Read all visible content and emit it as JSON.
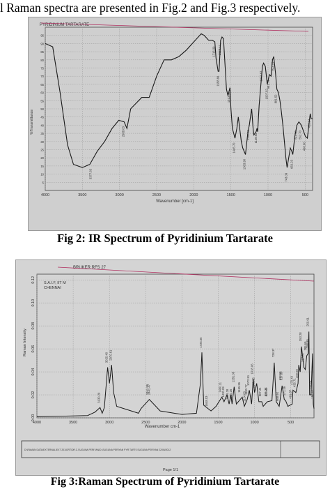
{
  "intro": {
    "text": "l Raman spectra are presented in Fig.2 and Fig.3 respectively."
  },
  "ir_figure": {
    "caption": "Fig 2: IR Spectrum of Pyridinium Tartarate",
    "header_label": "PYRIDINIUM TARTARATE",
    "ylabel": "%Transmittance",
    "xlabel": "Wavenumber [cm-1]",
    "chart_data": {
      "type": "line",
      "title": "",
      "xlabel": "Wavenumber [cm-1]",
      "ylabel": "%Transmittance",
      "x_reversed": true,
      "xlim": [
        4000,
        400
      ],
      "ylim": [
        0,
        100
      ],
      "x_ticks": [
        4000,
        3500,
        3000,
        2500,
        2000,
        1500,
        1000,
        500
      ],
      "y_ticks": [
        95,
        90,
        85,
        80,
        75,
        70,
        65,
        60,
        55,
        50,
        45,
        40,
        35,
        30,
        25,
        20,
        15,
        10,
        5
      ],
      "points": [
        [
          4000,
          90
        ],
        [
          3900,
          88
        ],
        [
          3800,
          60
        ],
        [
          3700,
          28
        ],
        [
          3620,
          16
        ],
        [
          3500,
          14
        ],
        [
          3400,
          16
        ],
        [
          3300,
          24
        ],
        [
          3200,
          30
        ],
        [
          3100,
          38
        ],
        [
          3010,
          43
        ],
        [
          2938,
          42
        ],
        [
          2900,
          38
        ],
        [
          2850,
          50
        ],
        [
          2700,
          57
        ],
        [
          2600,
          57
        ],
        [
          2500,
          70
        ],
        [
          2400,
          80
        ],
        [
          2300,
          80
        ],
        [
          2200,
          82
        ],
        [
          2100,
          86
        ],
        [
          2000,
          91
        ],
        [
          1900,
          96
        ],
        [
          1860,
          95
        ],
        [
          1800,
          92
        ],
        [
          1750,
          92
        ],
        [
          1716,
          91
        ],
        [
          1700,
          81
        ],
        [
          1672,
          73
        ],
        [
          1660,
          73
        ],
        [
          1638,
          92
        ],
        [
          1620,
          94
        ],
        [
          1600,
          93
        ],
        [
          1560,
          62
        ],
        [
          1540,
          58
        ],
        [
          1513,
          63
        ],
        [
          1500,
          50
        ],
        [
          1480,
          38
        ],
        [
          1445,
          32
        ],
        [
          1420,
          38
        ],
        [
          1400,
          45
        ],
        [
          1360,
          30
        ],
        [
          1340,
          26
        ],
        [
          1304,
          22
        ],
        [
          1290,
          28
        ],
        [
          1270,
          36
        ],
        [
          1252,
          40
        ],
        [
          1240,
          44
        ],
        [
          1220,
          50
        ],
        [
          1200,
          37
        ],
        [
          1190,
          34
        ],
        [
          1160,
          36
        ],
        [
          1149,
          38
        ],
        [
          1140,
          36
        ],
        [
          1120,
          52
        ],
        [
          1080,
          74
        ],
        [
          1077,
          76
        ],
        [
          1060,
          78
        ],
        [
          1037,
          76
        ],
        [
          1010,
          65
        ],
        [
          982,
          71
        ],
        [
          960,
          70
        ],
        [
          940,
          80
        ],
        [
          923,
          82
        ],
        [
          900,
          72
        ],
        [
          881,
          62
        ],
        [
          860,
          60
        ],
        [
          840,
          55
        ],
        [
          820,
          48
        ],
        [
          800,
          40
        ],
        [
          780,
          30
        ],
        [
          760,
          20
        ],
        [
          743,
          14
        ],
        [
          700,
          26
        ],
        [
          680,
          24
        ],
        [
          666,
          22
        ],
        [
          640,
          33
        ],
        [
          611,
          40
        ],
        [
          585,
          42
        ],
        [
          552,
          40
        ],
        [
          520,
          36
        ],
        [
          496,
          33
        ],
        [
          470,
          32
        ],
        [
          445,
          42
        ],
        [
          432,
          47
        ],
        [
          420,
          44
        ],
        [
          400,
          44
        ]
      ],
      "peak_labels": [
        "3377.63",
        "2938.03",
        "1658.84",
        "1716.00",
        "1638.44",
        "1513.81",
        "1445.70",
        "1303.90",
        "1252.09",
        "1149.60",
        "1077.67",
        "1007.02",
        "981.79",
        "923.70",
        "881.52",
        "743.09",
        "666.23",
        "611.58",
        "552.70",
        "496.60",
        "432.14"
      ]
    }
  },
  "raman_figure": {
    "caption": "Fig 3:Raman Spectrum of Pyridinium Tartarate",
    "instrument_label": "BRUKER RFS 27",
    "institution_lines": [
      "S.A.I.F, IIT M",
      "CHENNAI"
    ],
    "ylabel": "Raman Intensity",
    "xlabel": "Wavenumber cm-1",
    "footer_text": "D:\\RAMAN DATA\\EXTERNAL\\EXT 201\\ORT\\DR.C.SUGUNA PERIYAN\\D.\\SUGUNA PERIYAN PYR TART0   SUGUNA PERIYAN   22/06/2012",
    "page_label": "Page 1/1",
    "chart_data": {
      "type": "line",
      "title": "",
      "xlabel": "Wavenumber cm-1",
      "ylabel": "Raman Intensity",
      "x_reversed": true,
      "xlim": [
        4000,
        180
      ],
      "ylim": [
        0,
        0.125
      ],
      "x_ticks": [
        4000,
        3500,
        3000,
        2500,
        2000,
        1500,
        1000,
        500
      ],
      "y_ticks": [
        0.0,
        0.02,
        0.04,
        0.06,
        0.08,
        0.1,
        0.12
      ],
      "y_tick_labels": [
        "0.00",
        "0.02",
        "0.04",
        "0.06",
        "0.08",
        "0.10",
        "0.12"
      ],
      "points": [
        [
          4000,
          0.001
        ],
        [
          3600,
          0.0015
        ],
        [
          3300,
          0.002
        ],
        [
          3200,
          0.005
        ],
        [
          3129,
          0.009
        ],
        [
          3100,
          0.004
        ],
        [
          3070,
          0.009
        ],
        [
          3025,
          0.044
        ],
        [
          3000,
          0.03
        ],
        [
          2970,
          0.046
        ],
        [
          2942,
          0.022
        ],
        [
          2900,
          0.01
        ],
        [
          2600,
          0.004
        ],
        [
          2565,
          0.008
        ],
        [
          2450,
          0.016
        ],
        [
          2300,
          0.006
        ],
        [
          2000,
          0.003
        ],
        [
          1800,
          0.004
        ],
        [
          1745,
          0.03
        ],
        [
          1725,
          0.057
        ],
        [
          1700,
          0.011
        ],
        [
          1600,
          0.006
        ],
        [
          1530,
          0.01
        ],
        [
          1450,
          0.018
        ],
        [
          1420,
          0.014
        ],
        [
          1380,
          0.02
        ],
        [
          1350,
          0.012
        ],
        [
          1325,
          0.02
        ],
        [
          1310,
          0.012
        ],
        [
          1281,
          0.027
        ],
        [
          1250,
          0.012
        ],
        [
          1170,
          0.018
        ],
        [
          1140,
          0.01
        ],
        [
          1100,
          0.016
        ],
        [
          1072,
          0.024
        ],
        [
          1040,
          0.012
        ],
        [
          1018,
          0.034
        ],
        [
          1000,
          0.022
        ],
        [
          970,
          0.03
        ],
        [
          940,
          0.014
        ],
        [
          900,
          0.014
        ],
        [
          880,
          0.01
        ],
        [
          823,
          0.014
        ],
        [
          760,
          0.015
        ],
        [
          728,
          0.048
        ],
        [
          700,
          0.014
        ],
        [
          660,
          0.01
        ],
        [
          620,
          0.028
        ],
        [
          590,
          0.016
        ],
        [
          571,
          0.015
        ],
        [
          540,
          0.01
        ],
        [
          480,
          0.012
        ],
        [
          470,
          0.024
        ],
        [
          430,
          0.022
        ],
        [
          400,
          0.03
        ],
        [
          390,
          0.046
        ],
        [
          370,
          0.04
        ],
        [
          353,
          0.062
        ],
        [
          320,
          0.044
        ],
        [
          300,
          0.042
        ],
        [
          280,
          0.054
        ],
        [
          260,
          0.056
        ],
        [
          250,
          0.075
        ],
        [
          240,
          0.02
        ],
        [
          220,
          0.02
        ],
        [
          200,
          0.056
        ],
        [
          190,
          0.012
        ],
        [
          180,
          0.008
        ]
      ],
      "peak_labels": [
        "3130.29",
        "3025.40",
        "2970.61",
        "2461.99",
        "2441.47",
        "1725.05",
        "1648.03",
        "1460.11",
        "1420.09",
        "1361.28",
        "1310.25",
        "1281.08",
        "1195.55",
        "1124.00",
        "1100.77",
        "1072.91",
        "1018.06",
        "1000.55",
        "907.44",
        "834.32",
        "823.40",
        "728.37",
        "668.94",
        "632.59",
        "617.00",
        "571.49",
        "491.87",
        "470.43",
        "435.71",
        "400.00",
        "353.28",
        "317.61",
        "285.69",
        "258.95",
        "250.91",
        "218.14",
        "190.62"
      ]
    }
  }
}
